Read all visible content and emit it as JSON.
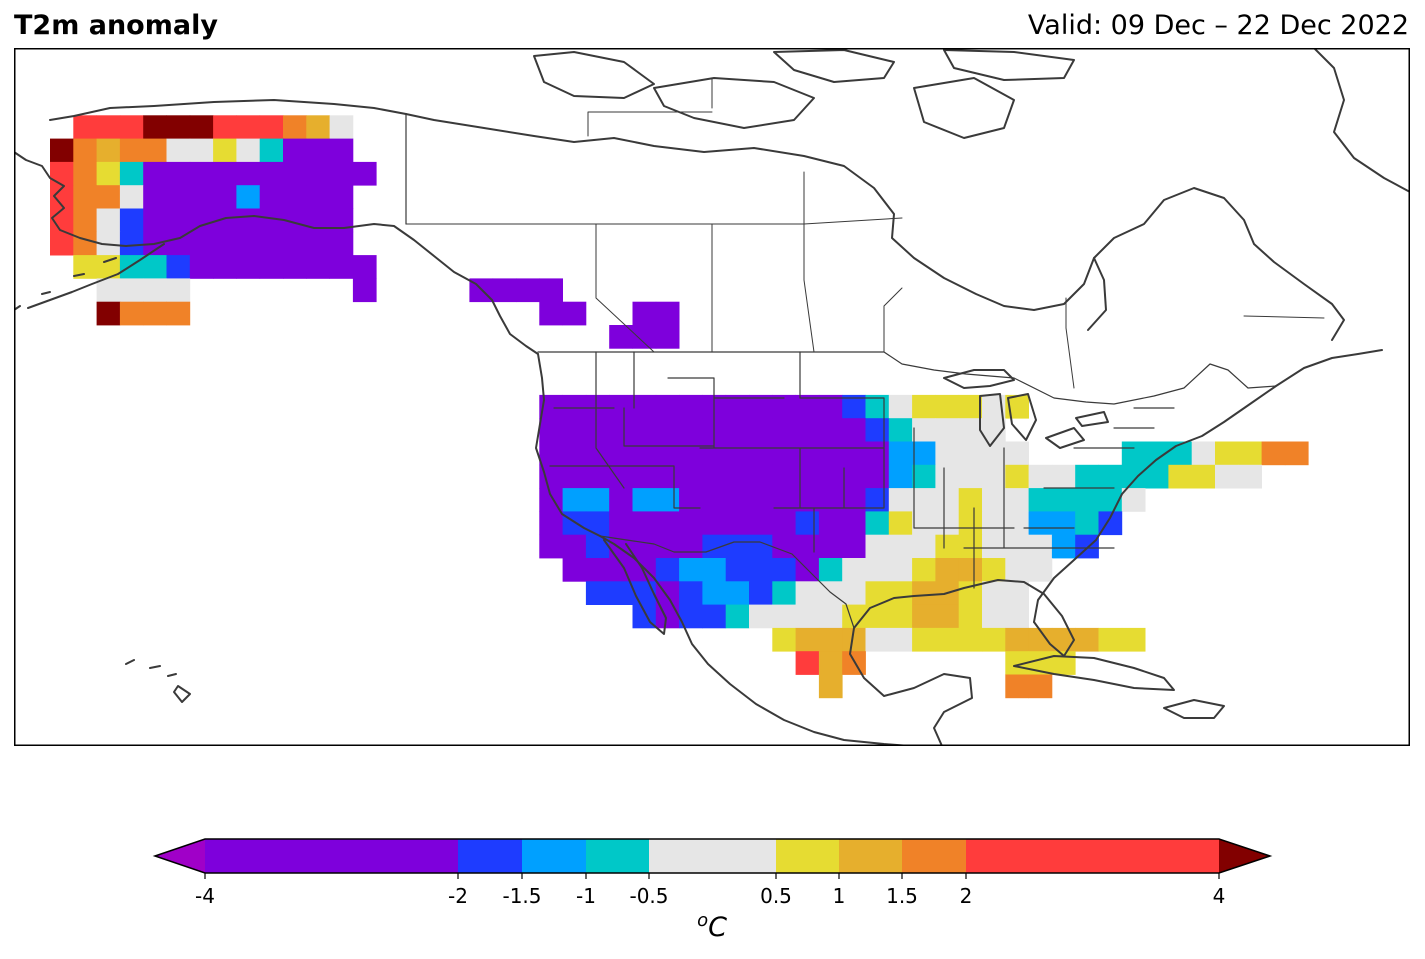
{
  "title": "T2m anomaly",
  "valid": "Valid: 09 Dec – 22 Dec 2022",
  "legend": {
    "units_base": "C",
    "units_sup": "o",
    "boundaries": [
      "-4",
      "-2",
      "-1.5",
      "-1",
      "-0.5",
      "0.5",
      "1",
      "1.5",
      "2",
      "4"
    ],
    "band_colors": [
      "#7e00dc",
      "#1e3cff",
      "#00a0ff",
      "#00c8c8",
      "#e6e6e6",
      "#e6dc32",
      "#e6af2d",
      "#f08228",
      "#ff3c3c"
    ],
    "under_color": "#a000c8",
    "over_color": "#820000",
    "extend": "both",
    "orientation": "horizontal"
  },
  "map": {
    "projection": "Lambert-style, North America",
    "region": "North America",
    "features": [
      "coastlines",
      "country borders",
      "US state borders",
      "Canadian provincial borders"
    ],
    "cell_size_deg": 2.5,
    "field_summary": "Anomaly field on a ~2.5 degree grid over Alaska and the contiguous United States; strongly below normal (< -2 °C) across the western and central US and southern Alaska, near normal over the Great Lakes/Ohio Valley, above normal along the Gulf Coast, Florida and Maine, and well above normal (> 4 °C) over western Alaska."
  }
}
